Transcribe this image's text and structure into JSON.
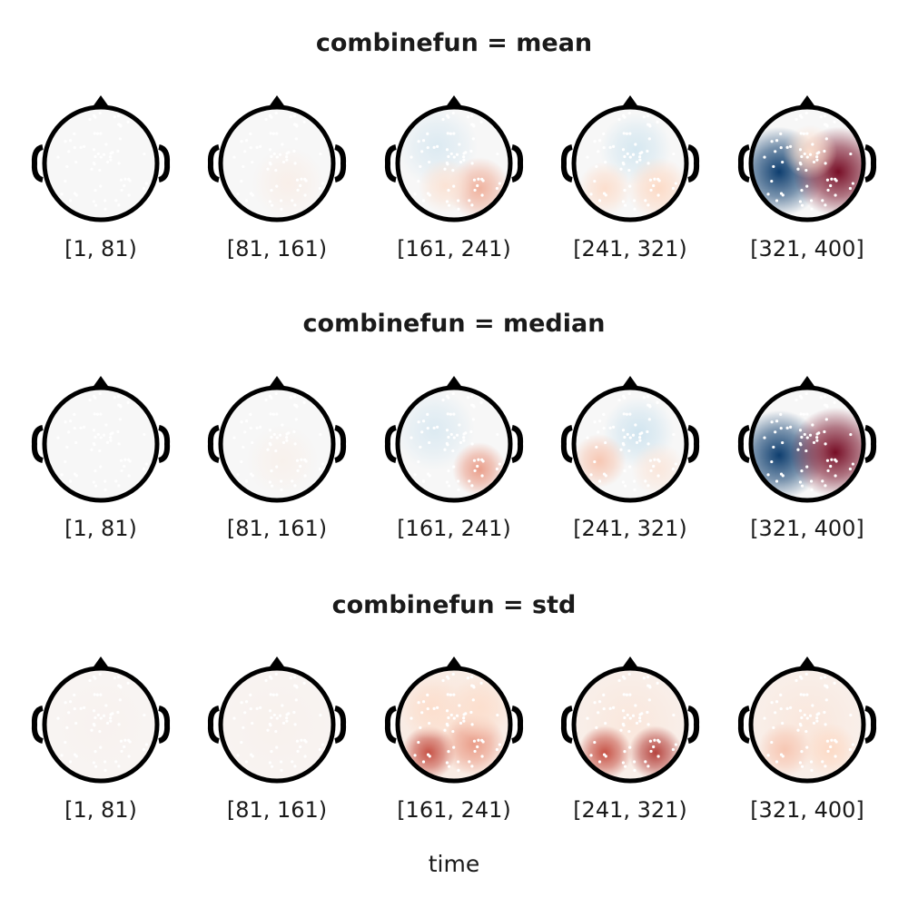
{
  "chart_data": {
    "type": "heatmap",
    "subtype": "eeg-topoplot-series",
    "xlabel": "time",
    "colormap": "RdBu_r",
    "colors": {
      "negative": "#053061",
      "neutral": "#f7f7f7",
      "positive": "#67001f",
      "outline": "#000000",
      "electrode": "#ffffff"
    },
    "column_labels": [
      "[1, 81)",
      "[81, 161)",
      "[161, 241)",
      "[241, 321)",
      "[321, 400]"
    ],
    "rows": [
      {
        "title": "combinefun = mean",
        "maps": [
          {
            "bin": "[1, 81)",
            "blobs": []
          },
          {
            "bin": "[81, 161)",
            "blobs": [
              {
                "pos": [
                  0.2,
                  0.35
                ],
                "v": 0.1,
                "s": 0.4
              }
            ]
          },
          {
            "bin": "[161, 241)",
            "blobs": [
              {
                "pos": [
                  -0.3,
                  -0.3
                ],
                "v": -0.25,
                "s": 0.45
              },
              {
                "pos": [
                  0.45,
                  0.45
                ],
                "v": 0.45,
                "s": 0.35
              },
              {
                "pos": [
                  -0.15,
                  0.4
                ],
                "v": 0.25,
                "s": 0.3
              }
            ]
          },
          {
            "bin": "[241, 321)",
            "blobs": [
              {
                "pos": [
                  0.1,
                  -0.25
                ],
                "v": -0.3,
                "s": 0.4
              },
              {
                "pos": [
                  -0.45,
                  0.45
                ],
                "v": 0.3,
                "s": 0.3
              },
              {
                "pos": [
                  0.5,
                  0.45
                ],
                "v": 0.35,
                "s": 0.35
              }
            ]
          },
          {
            "bin": "[321, 400]",
            "blobs": [
              {
                "pos": [
                  -0.5,
                  0.15
                ],
                "v": -0.95,
                "s": 0.5
              },
              {
                "pos": [
                  0.55,
                  0.15
                ],
                "v": 0.95,
                "s": 0.5
              },
              {
                "pos": [
                  0.05,
                  -0.2
                ],
                "v": 0.3,
                "s": 0.3
              }
            ]
          }
        ]
      },
      {
        "title": "combinefun = median",
        "maps": [
          {
            "bin": "[1, 81)",
            "blobs": []
          },
          {
            "bin": "[81, 161)",
            "blobs": [
              {
                "pos": [
                  0.1,
                  0.3
                ],
                "v": 0.08,
                "s": 0.4
              }
            ]
          },
          {
            "bin": "[161, 241)",
            "blobs": [
              {
                "pos": [
                  -0.35,
                  -0.25
                ],
                "v": -0.25,
                "s": 0.45
              },
              {
                "pos": [
                  0.45,
                  0.45
                ],
                "v": 0.5,
                "s": 0.3
              }
            ]
          },
          {
            "bin": "[241, 321)",
            "blobs": [
              {
                "pos": [
                  0.15,
                  -0.2
                ],
                "v": -0.35,
                "s": 0.4
              },
              {
                "pos": [
                  -0.55,
                  0.3
                ],
                "v": 0.4,
                "s": 0.3
              },
              {
                "pos": [
                  0.5,
                  0.45
                ],
                "v": 0.2,
                "s": 0.3
              }
            ]
          },
          {
            "bin": "[321, 400]",
            "blobs": [
              {
                "pos": [
                  -0.5,
                  0.2
                ],
                "v": -0.95,
                "s": 0.5
              },
              {
                "pos": [
                  0.5,
                  0.15
                ],
                "v": 0.95,
                "s": 0.5
              }
            ]
          }
        ]
      },
      {
        "title": "combinefun = std",
        "maps": [
          {
            "bin": "[1, 81)",
            "blobs": [
              {
                "pos": [
                  0,
                  0
                ],
                "v": 0.06,
                "s": 1.2
              }
            ]
          },
          {
            "bin": "[81, 161)",
            "blobs": [
              {
                "pos": [
                  0,
                  0
                ],
                "v": 0.07,
                "s": 1.2
              }
            ]
          },
          {
            "bin": "[161, 241)",
            "blobs": [
              {
                "pos": [
                  0,
                  0
                ],
                "v": 0.25,
                "s": 1.0
              },
              {
                "pos": [
                  -0.45,
                  0.5
                ],
                "v": 0.7,
                "s": 0.3
              },
              {
                "pos": [
                  0.35,
                  0.35
                ],
                "v": 0.5,
                "s": 0.35
              },
              {
                "pos": [
                  -0.4,
                  -0.3
                ],
                "v": 0.3,
                "s": 0.35
              },
              {
                "pos": [
                  0.45,
                  -0.3
                ],
                "v": 0.3,
                "s": 0.35
              }
            ]
          },
          {
            "bin": "[241, 321)",
            "blobs": [
              {
                "pos": [
                  0,
                  0
                ],
                "v": 0.2,
                "s": 1.0
              },
              {
                "pos": [
                  -0.45,
                  0.5
                ],
                "v": 0.7,
                "s": 0.3
              },
              {
                "pos": [
                  0.45,
                  0.5
                ],
                "v": 0.75,
                "s": 0.3
              }
            ]
          },
          {
            "bin": "[321, 400]",
            "blobs": [
              {
                "pos": [
                  0,
                  0
                ],
                "v": 0.2,
                "s": 1.0
              },
              {
                "pos": [
                  -0.4,
                  0.45
                ],
                "v": 0.4,
                "s": 0.3
              },
              {
                "pos": [
                  0.4,
                  0.45
                ],
                "v": 0.35,
                "s": 0.3
              }
            ]
          }
        ]
      }
    ]
  }
}
